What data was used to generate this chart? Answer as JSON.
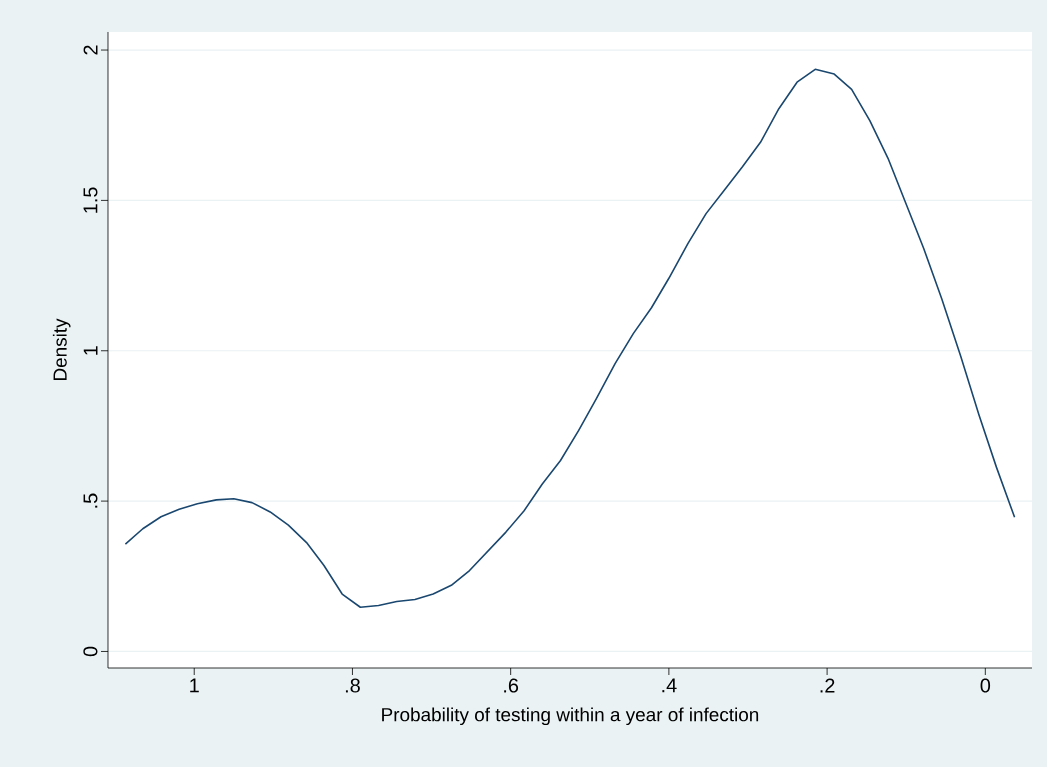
{
  "chart_data": {
    "type": "line",
    "xlabel": "Probability of testing within a year of infection",
    "ylabel": "Density",
    "x": [
      1.087,
      1.065,
      1.042,
      1.019,
      0.996,
      0.972,
      0.95,
      0.927,
      0.904,
      0.881,
      0.858,
      0.836,
      0.813,
      0.79,
      0.767,
      0.744,
      0.721,
      0.698,
      0.675,
      0.652,
      0.629,
      0.606,
      0.583,
      0.56,
      0.537,
      0.514,
      0.492,
      0.468,
      0.445,
      0.422,
      0.4,
      0.376,
      0.353,
      0.33,
      0.307,
      0.284,
      0.261,
      0.238,
      0.215,
      0.191,
      0.169,
      0.146,
      0.123,
      0.1,
      0.078,
      0.055,
      0.031,
      0.008,
      -0.014,
      -0.037
    ],
    "series": [
      {
        "color": "#1a476f",
        "values": [
          0.357,
          0.408,
          0.448,
          0.473,
          0.491,
          0.504,
          0.508,
          0.495,
          0.464,
          0.42,
          0.362,
          0.286,
          0.191,
          0.147,
          0.153,
          0.166,
          0.173,
          0.191,
          0.22,
          0.269,
          0.333,
          0.397,
          0.468,
          0.557,
          0.635,
          0.735,
          0.839,
          0.957,
          1.057,
          1.143,
          1.241,
          1.356,
          1.456,
          1.534,
          1.612,
          1.694,
          1.805,
          1.893,
          1.936,
          1.92,
          1.869,
          1.765,
          1.64,
          1.487,
          1.341,
          1.172,
          0.981,
          0.786,
          0.613,
          0.446
        ]
      }
    ],
    "xlim": [
      1.109,
      -0.059
    ],
    "ylim": [
      -0.055,
      2.06
    ],
    "xticks": [
      1,
      {
        "value": 0.8,
        "label": ".8"
      },
      {
        "value": 0.6,
        "label": ".6"
      },
      {
        "value": 0.4,
        "label": ".4"
      },
      {
        "value": 0.2,
        "label": ".2"
      },
      0
    ],
    "yticks": [
      0,
      {
        "value": 0.5,
        "label": ".5"
      },
      1,
      1.5,
      2
    ],
    "grid": "y",
    "marker": "none",
    "line_style": "solid"
  }
}
